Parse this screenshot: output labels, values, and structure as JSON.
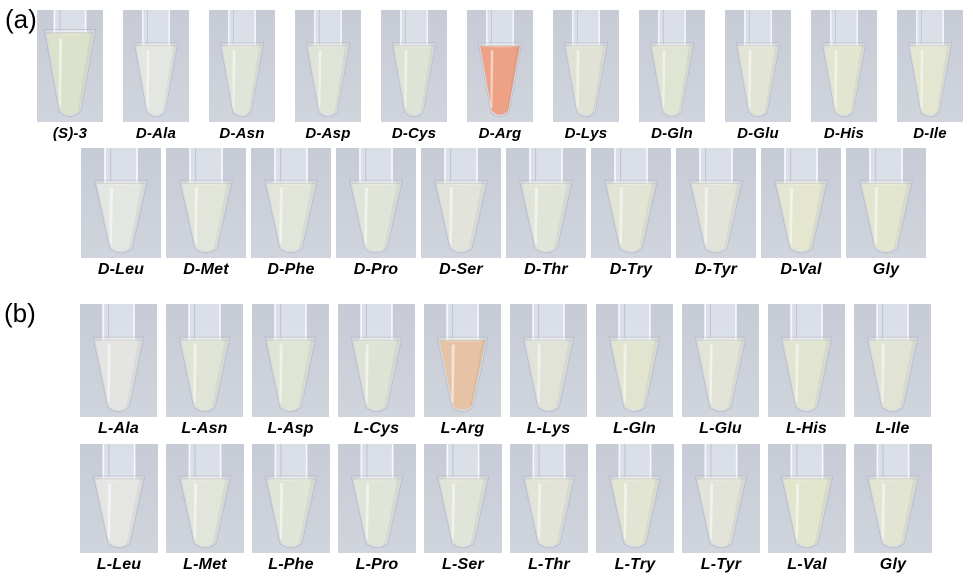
{
  "colors": {
    "page_background": "#ffffff",
    "photo_background_top": "#c7cbd6",
    "photo_background_bottom": "#d0d4dc",
    "label_text": "#000000",
    "default_liquid": "#e2e5d8",
    "d_arg_positive": "#eda285",
    "l_arg_positive": "#e6c3a5",
    "probe_green": "#dbe1ca"
  },
  "panels": [
    {
      "label": "(a)",
      "rows": [
        {
          "tubes": [
            {
              "label": "(S)-3",
              "liquid": "#dbe1ca",
              "big": true
            },
            {
              "label": "D-Ala",
              "liquid": "#e4e6e1"
            },
            {
              "label": "D-Asn",
              "liquid": "#e1e4d8"
            },
            {
              "label": "D-Asp",
              "liquid": "#e0e3d7"
            },
            {
              "label": "D-Cys",
              "liquid": "#dfe3d6"
            },
            {
              "label": "D-Arg",
              "liquid": "#eda285"
            },
            {
              "label": "D-Lys",
              "liquid": "#e0e2d6"
            },
            {
              "label": "D-Gln",
              "liquid": "#e0e4d2"
            },
            {
              "label": "D-Glu",
              "liquid": "#e2e5d5"
            },
            {
              "label": "D-His",
              "liquid": "#e2e6d0"
            },
            {
              "label": "D-Ile",
              "liquid": "#e3e7d1"
            }
          ]
        },
        {
          "tubes": [
            {
              "label": "D-Leu",
              "liquid": "#e4e6e2"
            },
            {
              "label": "D-Met",
              "liquid": "#e2e5d9"
            },
            {
              "label": "D-Phe",
              "liquid": "#e2e5d9"
            },
            {
              "label": "D-Pro",
              "liquid": "#e1e4d8"
            },
            {
              "label": "D-Ser",
              "liquid": "#e2e4dc"
            },
            {
              "label": "D-Thr",
              "liquid": "#e1e4d8"
            },
            {
              "label": "D-Try",
              "liquid": "#e2e5d3"
            },
            {
              "label": "D-Tyr",
              "liquid": "#e2e4da"
            },
            {
              "label": "D-Val",
              "liquid": "#e4e6cf"
            },
            {
              "label": "Gly",
              "liquid": "#e3e6cf"
            }
          ]
        }
      ]
    },
    {
      "label": "(b)",
      "rows": [
        {
          "tubes": [
            {
              "label": "L-Ala",
              "liquid": "#e4e5e3"
            },
            {
              "label": "L-Asn",
              "liquid": "#e0e4d6"
            },
            {
              "label": "L-Asp",
              "liquid": "#dfe4d4"
            },
            {
              "label": "L-Cys",
              "liquid": "#dfe3d5"
            },
            {
              "label": "L-Arg",
              "liquid": "#e6c3a5"
            },
            {
              "label": "L-Lys",
              "liquid": "#e1e3d9"
            },
            {
              "label": "L-Gln",
              "liquid": "#e1e5d0"
            },
            {
              "label": "L-Glu",
              "liquid": "#e1e4d6"
            },
            {
              "label": "L-His",
              "liquid": "#e1e5cf"
            },
            {
              "label": "L-Ile",
              "liquid": "#e1e4d5"
            }
          ]
        },
        {
          "tubes": [
            {
              "label": "L-Leu",
              "liquid": "#e5e6e4"
            },
            {
              "label": "L-Met",
              "liquid": "#e2e5da"
            },
            {
              "label": "L-Phe",
              "liquid": "#e1e5d8"
            },
            {
              "label": "L-Pro",
              "liquid": "#e1e4d9"
            },
            {
              "label": "L-Ser",
              "liquid": "#e1e4d8"
            },
            {
              "label": "L-Thr",
              "liquid": "#e1e4d6"
            },
            {
              "label": "L-Try",
              "liquid": "#e2e5d1"
            },
            {
              "label": "L-Tyr",
              "liquid": "#e2e4da"
            },
            {
              "label": "L-Val",
              "liquid": "#e2e6cd"
            },
            {
              "label": "Gly",
              "liquid": "#e2e5d2"
            }
          ]
        }
      ]
    }
  ]
}
